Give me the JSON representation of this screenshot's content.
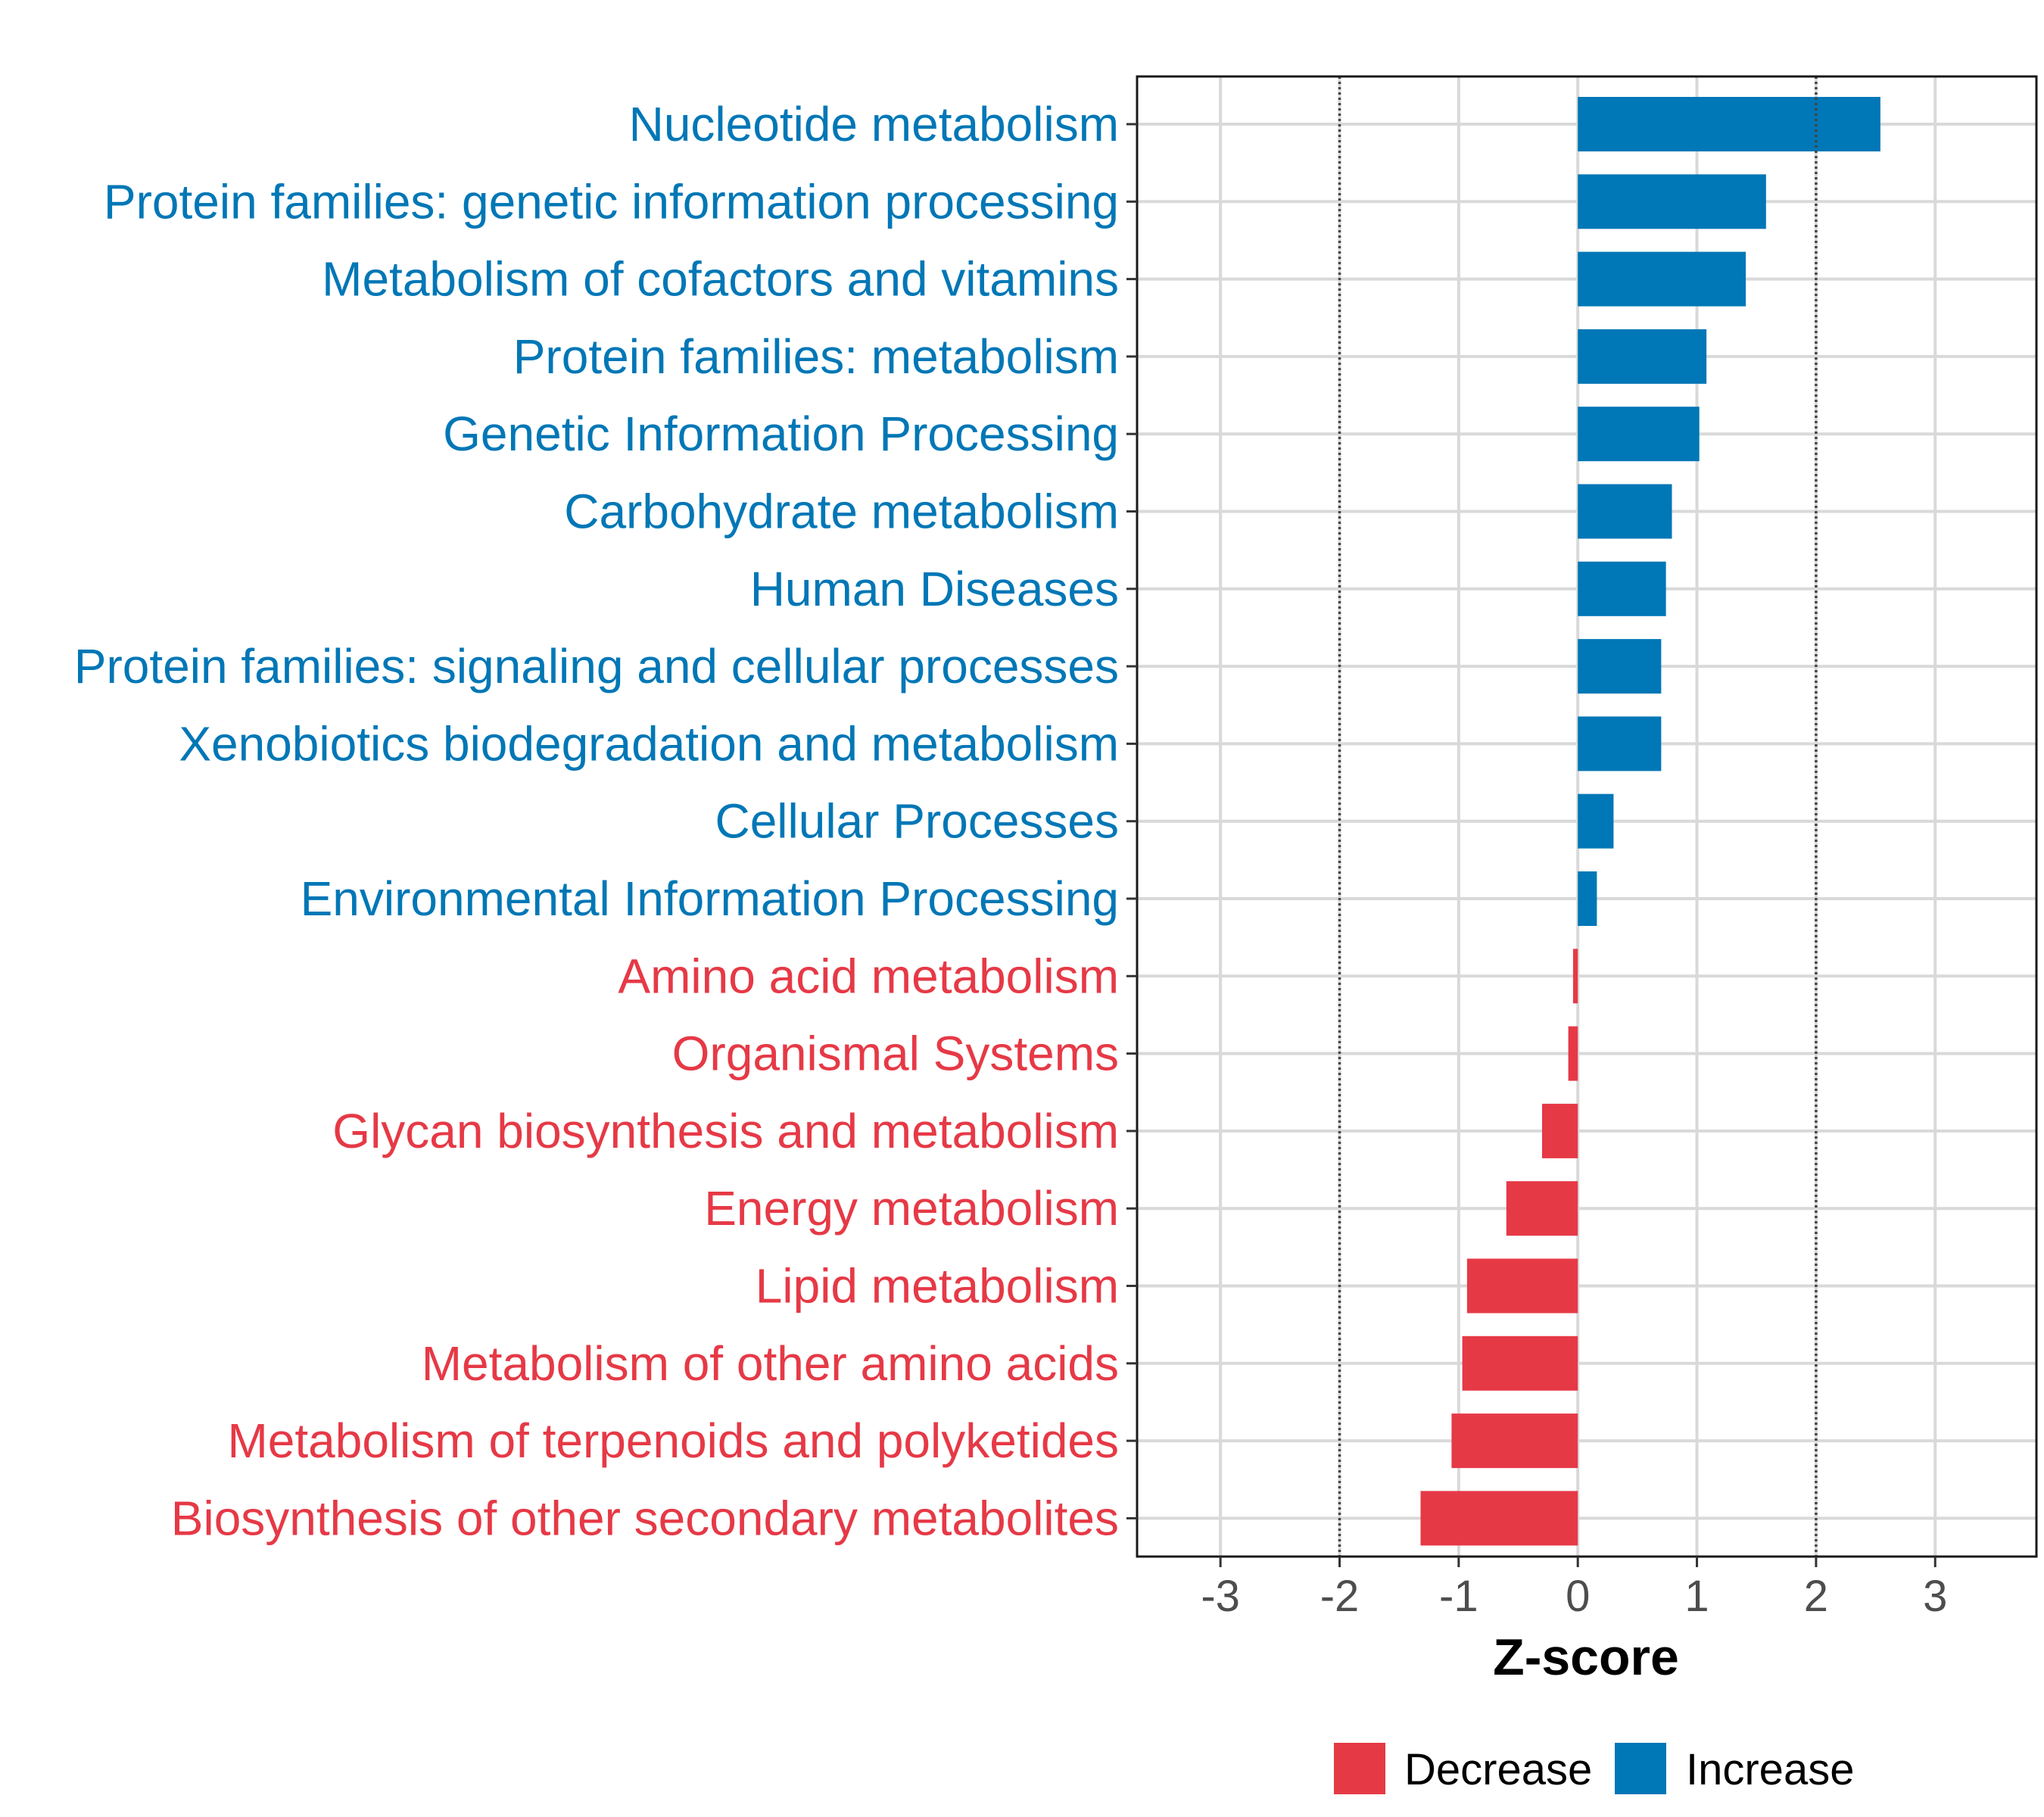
{
  "chart_data": {
    "type": "bar",
    "orientation": "horizontal",
    "title": "",
    "xlabel": "Z-score",
    "ylabel": "",
    "xlim": [
      -3.7,
      3.85
    ],
    "x_ticks": [
      -3,
      -2,
      -1,
      0,
      1,
      2,
      3
    ],
    "x_tick_labels": [
      "-3",
      "-2",
      "-1",
      "0",
      "1",
      "2",
      "3"
    ],
    "reference_lines": [
      -2,
      2
    ],
    "grid": true,
    "legend_position": "bottom",
    "colors": {
      "Decrease": "#e63946",
      "Increase": "#0077b6"
    },
    "legend": [
      {
        "name": "Decrease",
        "color": "#e63946"
      },
      {
        "name": "Increase",
        "color": "#0077b6"
      }
    ],
    "categories": [
      "Nucleotide metabolism",
      "Protein families: genetic information processing",
      "Metabolism of cofactors and vitamins",
      "Protein families: metabolism",
      "Genetic Information Processing",
      "Carbohydrate metabolism",
      "Human Diseases",
      "Protein families: signaling and cellular processes",
      "Xenobiotics biodegradation and metabolism",
      "Cellular Processes",
      "Environmental Information Processing",
      "Amino acid metabolism",
      "Organismal Systems",
      "Glycan biosynthesis and metabolism",
      "Energy metabolism",
      "Lipid metabolism",
      "Metabolism of other amino acids",
      "Metabolism of terpenoids and polyketides",
      "Biosynthesis of other secondary metabolites"
    ],
    "values": [
      2.54,
      1.58,
      1.41,
      1.08,
      1.02,
      0.79,
      0.74,
      0.7,
      0.7,
      0.3,
      0.16,
      -0.04,
      -0.08,
      -0.3,
      -0.6,
      -0.93,
      -0.97,
      -1.06,
      -1.32
    ],
    "groups": [
      "Increase",
      "Increase",
      "Increase",
      "Increase",
      "Increase",
      "Increase",
      "Increase",
      "Increase",
      "Increase",
      "Increase",
      "Increase",
      "Decrease",
      "Decrease",
      "Decrease",
      "Decrease",
      "Decrease",
      "Decrease",
      "Decrease",
      "Decrease"
    ]
  }
}
